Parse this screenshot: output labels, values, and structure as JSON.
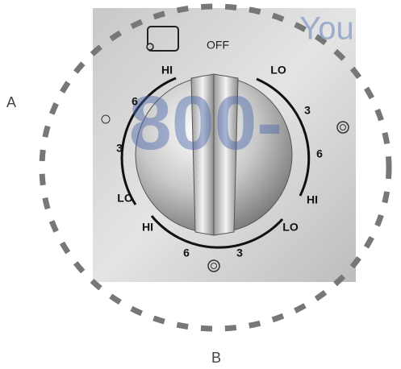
{
  "outer_labels": {
    "left": "A",
    "bottom": "B"
  },
  "indicator": "OFF",
  "left_burner": [
    "HI",
    "6",
    "3",
    "LO"
  ],
  "right_burner": [
    "LO",
    "3",
    "6",
    "HI"
  ],
  "bottom_burner": [
    "HI",
    "6",
    "3",
    "LO"
  ],
  "watermark": [
    "You",
    "800-"
  ]
}
